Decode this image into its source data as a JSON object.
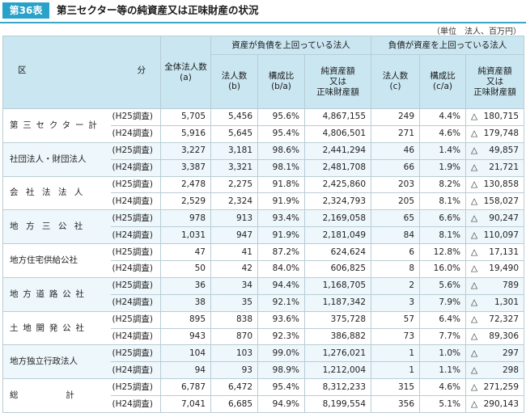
{
  "header": {
    "badge": "第36表",
    "title": "第三セクター等の純資産又は正味財産の状況",
    "unit": "（単位　法人、百万円）"
  },
  "columns": {
    "kubun_left": "区",
    "kubun_right": "分",
    "total": "全体法人数\n(a)",
    "asset_group": "資産が負債を上回っている法人",
    "liab_group": "負債が資産を上回っている法人",
    "a_count": "法人数\n(b)",
    "a_ratio": "構成比\n(b/a)",
    "a_amount": "純資産額\n又は\n正味財産額",
    "l_count": "法人数\n(c)",
    "l_ratio": "構成比\n(c/a)",
    "l_amount": "純資産額\n又は\n正味財産額"
  },
  "negative_marker": "△",
  "groups": [
    {
      "label": "第三セクター計",
      "rows": [
        {
          "survey": "(H25調査)",
          "total": "5,705",
          "a_count": "5,456",
          "a_ratio": "95.6%",
          "a_amount": "4,867,155",
          "l_count": "249",
          "l_ratio": "4.4%",
          "l_amount": "180,715"
        },
        {
          "survey": "(H24調査)",
          "total": "5,916",
          "a_count": "5,645",
          "a_ratio": "95.4%",
          "a_amount": "4,806,501",
          "l_count": "271",
          "l_ratio": "4.6%",
          "l_amount": "179,748"
        }
      ]
    },
    {
      "label": "社団法人・財団法人",
      "rows": [
        {
          "survey": "(H25調査)",
          "total": "3,227",
          "a_count": "3,181",
          "a_ratio": "98.6%",
          "a_amount": "2,441,294",
          "l_count": "46",
          "l_ratio": "1.4%",
          "l_amount": "49,857"
        },
        {
          "survey": "(H24調査)",
          "total": "3,387",
          "a_count": "3,321",
          "a_ratio": "98.1%",
          "a_amount": "2,481,708",
          "l_count": "66",
          "l_ratio": "1.9%",
          "l_amount": "21,721"
        }
      ]
    },
    {
      "label": "会社法法人",
      "rows": [
        {
          "survey": "(H25調査)",
          "total": "2,478",
          "a_count": "2,275",
          "a_ratio": "91.8%",
          "a_amount": "2,425,860",
          "l_count": "203",
          "l_ratio": "8.2%",
          "l_amount": "130,858"
        },
        {
          "survey": "(H24調査)",
          "total": "2,529",
          "a_count": "2,324",
          "a_ratio": "91.9%",
          "a_amount": "2,324,793",
          "l_count": "205",
          "l_ratio": "8.1%",
          "l_amount": "158,027"
        }
      ]
    },
    {
      "label": "地方三公社",
      "rows": [
        {
          "survey": "(H25調査)",
          "total": "978",
          "a_count": "913",
          "a_ratio": "93.4%",
          "a_amount": "2,169,058",
          "l_count": "65",
          "l_ratio": "6.6%",
          "l_amount": "90,247"
        },
        {
          "survey": "(H24調査)",
          "total": "1,031",
          "a_count": "947",
          "a_ratio": "91.9%",
          "a_amount": "2,181,049",
          "l_count": "84",
          "l_ratio": "8.1%",
          "l_amount": "110,097"
        }
      ]
    },
    {
      "label": "地方住宅供給公社",
      "rows": [
        {
          "survey": "(H25調査)",
          "total": "47",
          "a_count": "41",
          "a_ratio": "87.2%",
          "a_amount": "624,624",
          "l_count": "6",
          "l_ratio": "12.8%",
          "l_amount": "17,131"
        },
        {
          "survey": "(H24調査)",
          "total": "50",
          "a_count": "42",
          "a_ratio": "84.0%",
          "a_amount": "606,825",
          "l_count": "8",
          "l_ratio": "16.0%",
          "l_amount": "19,490"
        }
      ]
    },
    {
      "label": "地方道路公社",
      "rows": [
        {
          "survey": "(H25調査)",
          "total": "36",
          "a_count": "34",
          "a_ratio": "94.4%",
          "a_amount": "1,168,705",
          "l_count": "2",
          "l_ratio": "5.6%",
          "l_amount": "789"
        },
        {
          "survey": "(H24調査)",
          "total": "38",
          "a_count": "35",
          "a_ratio": "92.1%",
          "a_amount": "1,187,342",
          "l_count": "3",
          "l_ratio": "7.9%",
          "l_amount": "1,301"
        }
      ]
    },
    {
      "label": "土地開発公社",
      "rows": [
        {
          "survey": "(H25調査)",
          "total": "895",
          "a_count": "838",
          "a_ratio": "93.6%",
          "a_amount": "375,728",
          "l_count": "57",
          "l_ratio": "6.4%",
          "l_amount": "72,327"
        },
        {
          "survey": "(H24調査)",
          "total": "943",
          "a_count": "870",
          "a_ratio": "92.3%",
          "a_amount": "386,882",
          "l_count": "73",
          "l_ratio": "7.7%",
          "l_amount": "89,306"
        }
      ]
    },
    {
      "label": "地方独立行政法人",
      "rows": [
        {
          "survey": "(H25調査)",
          "total": "104",
          "a_count": "103",
          "a_ratio": "99.0%",
          "a_amount": "1,276,021",
          "l_count": "1",
          "l_ratio": "1.0%",
          "l_amount": "297"
        },
        {
          "survey": "(H24調査)",
          "total": "94",
          "a_count": "93",
          "a_ratio": "98.9%",
          "a_amount": "1,212,004",
          "l_count": "1",
          "l_ratio": "1.1%",
          "l_amount": "298"
        }
      ]
    },
    {
      "label": "総計",
      "rows": [
        {
          "survey": "(H25調査)",
          "total": "6,787",
          "a_count": "6,472",
          "a_ratio": "95.4%",
          "a_amount": "8,312,233",
          "l_count": "315",
          "l_ratio": "4.6%",
          "l_amount": "271,259"
        },
        {
          "survey": "(H24調査)",
          "total": "7,041",
          "a_count": "6,685",
          "a_ratio": "94.9%",
          "a_amount": "8,199,554",
          "l_count": "356",
          "l_ratio": "5.1%",
          "l_amount": "290,143"
        }
      ]
    }
  ]
}
